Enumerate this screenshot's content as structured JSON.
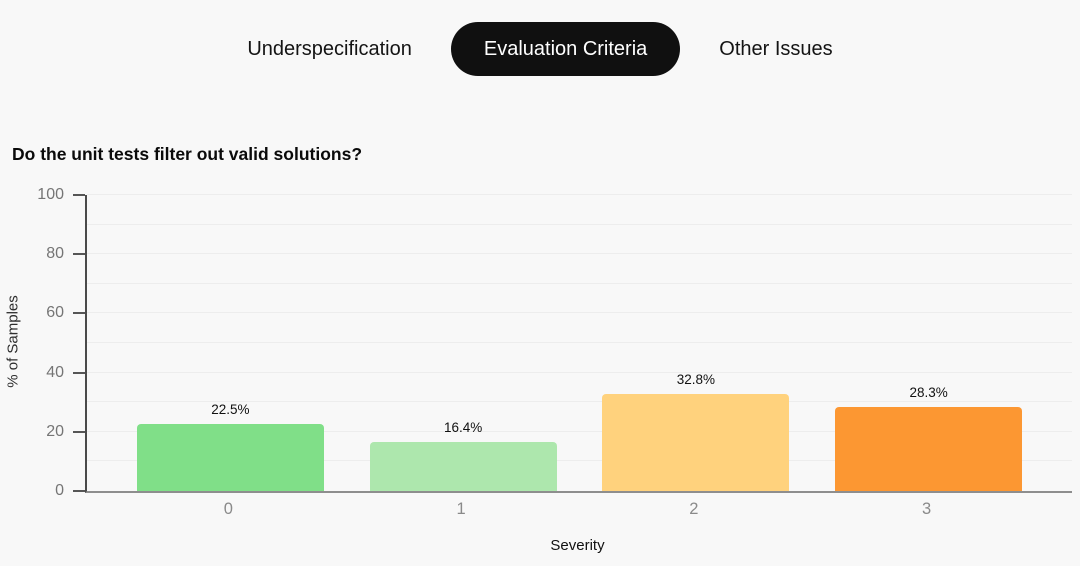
{
  "tabs": [
    {
      "label": "Underspecification",
      "active": false
    },
    {
      "label": "Evaluation Criteria",
      "active": true
    },
    {
      "label": "Other Issues",
      "active": false
    }
  ],
  "question_title": "Do the unit tests filter out valid solutions?",
  "chart_data": {
    "type": "bar",
    "title": "Do the unit tests filter out valid solutions?",
    "categories": [
      "0",
      "1",
      "2",
      "3"
    ],
    "values": [
      22.5,
      16.4,
      32.8,
      28.3
    ],
    "value_labels": [
      "22.5%",
      "16.4%",
      "32.8%",
      "28.3%"
    ],
    "bar_colors": [
      "#80df88",
      "#ade7ad",
      "#ffd27d",
      "#fc9732"
    ],
    "xlabel": "Severity",
    "ylabel": "% of Samples",
    "ylim": [
      0,
      100
    ],
    "yticks": [
      0,
      20,
      40,
      60,
      80,
      100
    ],
    "grid": true,
    "grid_step": 10,
    "legend": false
  },
  "colors": {
    "background": "#f8f8f8",
    "active_tab_bg": "#101010",
    "active_tab_text": "#ffffff",
    "tab_text": "#141414",
    "axis_spine": "#4a4a4a",
    "baseline": "#8e8e8e",
    "grid_line": "#ededed",
    "tick_label": "#757575",
    "value_label": "#111111"
  }
}
